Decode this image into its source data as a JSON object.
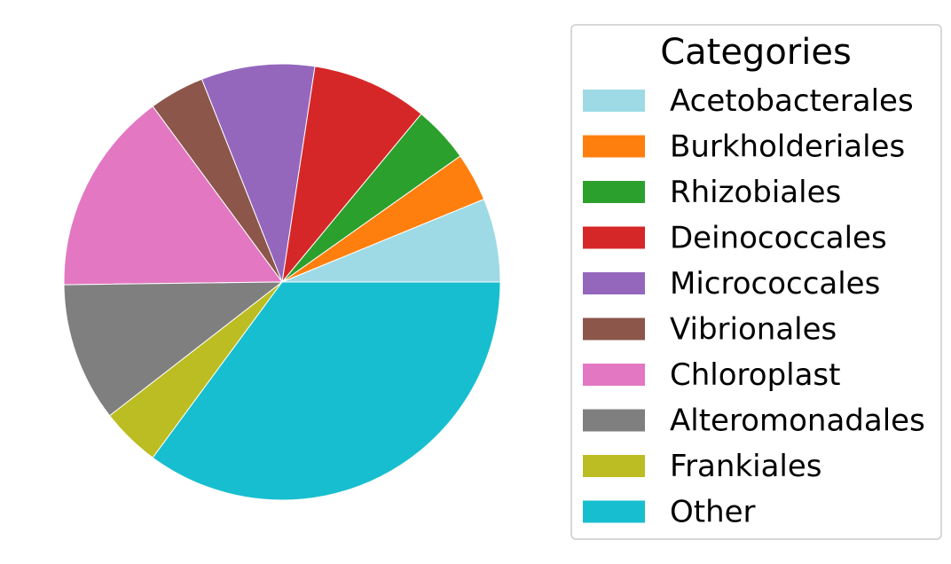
{
  "chart_data": {
    "type": "pie",
    "title": "",
    "legend_title": "Categories",
    "legend_position": "right",
    "start_angle_deg": 0,
    "direction": "counterclockwise",
    "slices": [
      {
        "label": "Acetobacterales",
        "value": 6.2,
        "color": "#9edae5"
      },
      {
        "label": "Burkholderiales",
        "value": 3.6,
        "color": "#ff7f0e"
      },
      {
        "label": "Rhizobiales",
        "value": 4.2,
        "color": "#2ca02c"
      },
      {
        "label": "Deinococcales",
        "value": 8.6,
        "color": "#d62728"
      },
      {
        "label": "Micrococcales",
        "value": 8.4,
        "color": "#9467bd"
      },
      {
        "label": "Vibrionales",
        "value": 4.1,
        "color": "#8c564b"
      },
      {
        "label": "Chloroplast",
        "value": 15.1,
        "color": "#e377c2"
      },
      {
        "label": "Alteromonadales",
        "value": 10.3,
        "color": "#7f7f7f"
      },
      {
        "label": "Frankiales",
        "value": 4.4,
        "color": "#bcbd22"
      },
      {
        "label": "Other",
        "value": 35.1,
        "color": "#17becf"
      }
    ]
  }
}
